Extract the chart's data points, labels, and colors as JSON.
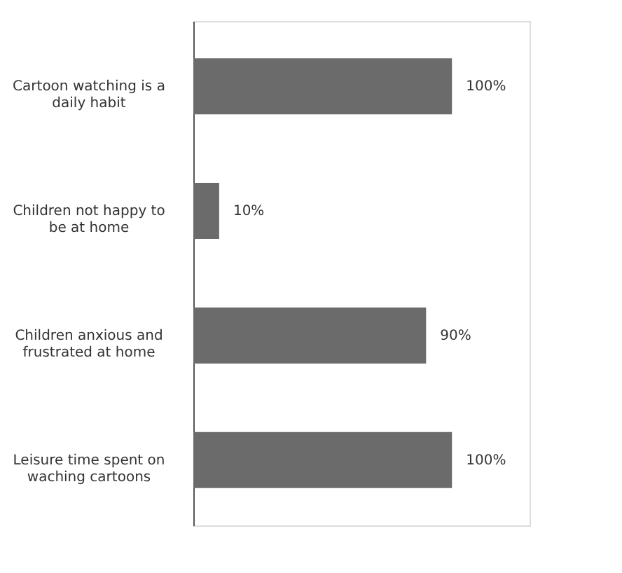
{
  "chart_data": {
    "type": "bar",
    "orientation": "horizontal",
    "data_labels": true,
    "categories": [
      "Cartoon watching is a\ndaily habit",
      "Children not happy to\nbe at home",
      "Children anxious and\nfrustrated  at home",
      "Leisure time spent on\nwaching cartoons"
    ],
    "values": [
      100,
      10,
      90,
      100
    ],
    "color": "#6b6b6b",
    "value_labels": [
      "100%",
      "10%",
      "90%",
      "100%"
    ]
  }
}
